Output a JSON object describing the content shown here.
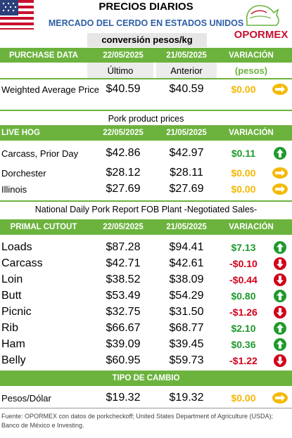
{
  "header": {
    "title": "PRECIOS DIARIOS",
    "subtitle": "MERCADO DEL CERDO EN ESTADOS UNIDOS",
    "conversion": "conversión pesos/kg",
    "logo_text": "OPORMEX"
  },
  "purchase": {
    "label": "PURCHASE DATA",
    "date1": "22/05/2025",
    "date2": "21/05/2025",
    "variation": "VARIACIÓN",
    "sub1": "Último",
    "sub2": "Anterior",
    "sub3": "(pesos)",
    "rows": [
      {
        "label": "Weighted Average Price",
        "v1": "$40.59",
        "v2": "$40.59",
        "var": "$0.00",
        "trend": "flat"
      }
    ]
  },
  "pork": {
    "title": "Pork product prices",
    "label": "LIVE HOG",
    "date1": "22/05/2025",
    "date2": "21/05/2025",
    "variation": "VARIACIÓN",
    "rows": [
      {
        "label": "Carcass, Prior Day",
        "v1": "$42.86",
        "v2": "$42.97",
        "var": "$0.11",
        "trend": "up"
      },
      {
        "label": "Dorchester",
        "v1": "$28.12",
        "v2": "$28.11",
        "var": "$0.00",
        "trend": "flat"
      },
      {
        "label": "Illinois",
        "v1": "$27.69",
        "v2": "$27.69",
        "var": "$0.00",
        "trend": "flat"
      }
    ]
  },
  "fob": {
    "title": "National Daily Pork Report FOB Plant -Negotiated Sales-",
    "label": "PRIMAL CUTOUT",
    "date1": "22/05/2025",
    "date2": "21/05/2025",
    "variation": "VARIACIÓN",
    "rows": [
      {
        "label": "Loads",
        "v1": "$87.28",
        "v2": "$94.41",
        "var": "$7.13",
        "trend": "up"
      },
      {
        "label": "Carcass",
        "v1": "$42.71",
        "v2": "$42.61",
        "var": "-$0.10",
        "trend": "down"
      },
      {
        "label": "Loin",
        "v1": "$38.52",
        "v2": "$38.09",
        "var": "-$0.44",
        "trend": "down"
      },
      {
        "label": "Butt",
        "v1": "$53.49",
        "v2": "$54.29",
        "var": "$0.80",
        "trend": "up"
      },
      {
        "label": "Picnic",
        "v1": "$32.75",
        "v2": "$31.50",
        "var": "-$1.26",
        "trend": "down"
      },
      {
        "label": "Rib",
        "v1": "$66.67",
        "v2": "$68.77",
        "var": "$2.10",
        "trend": "up"
      },
      {
        "label": "Ham",
        "v1": "$39.09",
        "v2": "$39.45",
        "var": "$0.36",
        "trend": "up"
      },
      {
        "label": "Belly",
        "v1": "$60.95",
        "v2": "$59.73",
        "var": "-$1.22",
        "trend": "down"
      }
    ]
  },
  "exchange": {
    "label": "TIPO DE CAMBIO",
    "rows": [
      {
        "label": "Pesos/Dólar",
        "v1": "$19.32",
        "v2": "$19.32",
        "var": "$0.00",
        "trend": "flat"
      }
    ]
  },
  "footer": "Fuente: OPORMEX con datos de porkcheckoff; United States Department of Agriculture (USDA); Banco de México e Investing.",
  "colors": {
    "up": "#1e9a2c",
    "down": "#d0021b",
    "flat": "#f5b800",
    "bar": "#6cb33e"
  }
}
